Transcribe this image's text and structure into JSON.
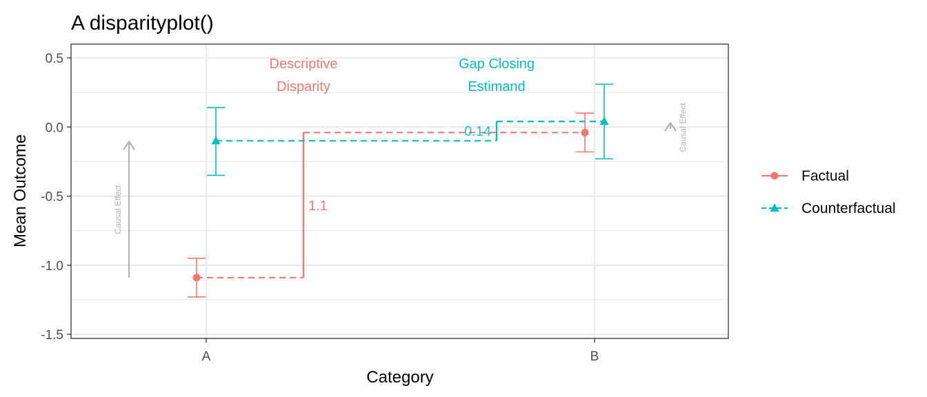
{
  "chart_data": {
    "type": "scatter",
    "title": "A disparityplot()",
    "xlabel": "Category",
    "ylabel": "Mean Outcome",
    "categories": [
      "A",
      "B"
    ],
    "ylim": [
      -1.53,
      0.6
    ],
    "yticks": [
      {
        "value": 0.5,
        "label": "0.5"
      },
      {
        "value": 0.0,
        "label": "0.0"
      },
      {
        "value": -0.5,
        "label": "-0.5"
      },
      {
        "value": -1.0,
        "label": "-1.0"
      },
      {
        "value": -1.5,
        "label": "-1.5"
      }
    ],
    "grid": true,
    "legend_position": "right",
    "series": [
      {
        "name": "Factual",
        "color": "#F8766D",
        "marker": "circle",
        "points": [
          {
            "category": "A",
            "y": -1.09,
            "lower": -1.23,
            "upper": -0.95
          },
          {
            "category": "B",
            "y": -0.04,
            "lower": -0.18,
            "upper": 0.1
          }
        ]
      },
      {
        "name": "Counterfactual",
        "color": "#00BFC4",
        "marker": "triangle",
        "points": [
          {
            "category": "A",
            "y": -0.1,
            "lower": -0.35,
            "upper": 0.14
          },
          {
            "category": "B",
            "y": 0.04,
            "lower": -0.23,
            "upper": 0.31
          }
        ]
      }
    ],
    "annotations": {
      "descriptive_label_1": "Descriptive",
      "descriptive_label_2": "Disparity",
      "descriptive_value": "1.1",
      "gap_label_1": "Gap Closing",
      "gap_label_2": "Estimand",
      "gap_value": "0.14",
      "causal_effect_a": "Causal Effect",
      "causal_effect_b": "Causal Effect"
    }
  }
}
